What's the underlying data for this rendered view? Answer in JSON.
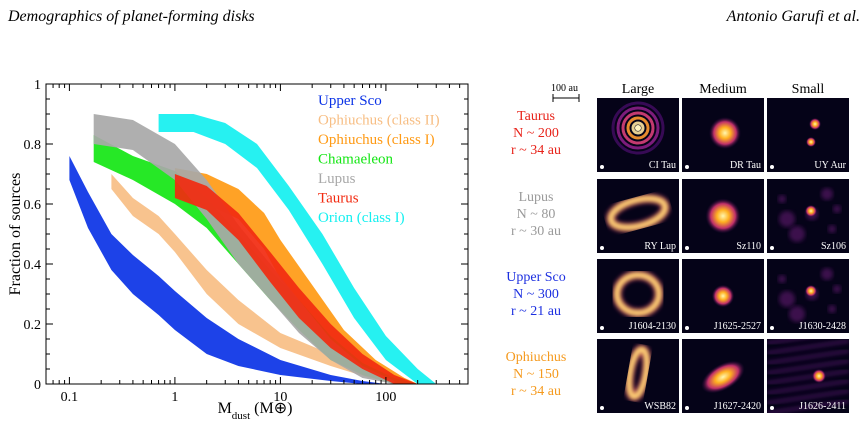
{
  "header": {
    "left": "Demographics of planet-forming disks",
    "right": "Antonio Garufi et al."
  },
  "chart_data": {
    "type": "area",
    "xlabel": "M",
    "xlabel_sub": "dust",
    "xlabel_unit": "(M⊕)",
    "ylabel": "Fraction of sources",
    "xscale": "log",
    "xlim": [
      0.06,
      600
    ],
    "ylim": [
      0,
      1
    ],
    "xticks": [
      {
        "v": 0.1,
        "label": "0.1"
      },
      {
        "v": 1,
        "label": "1"
      },
      {
        "v": 10,
        "label": "10"
      },
      {
        "v": 100,
        "label": "100"
      }
    ],
    "yticks": [
      {
        "v": 0,
        "label": "0"
      },
      {
        "v": 0.2,
        "label": "0.2"
      },
      {
        "v": 0.4,
        "label": "0.4"
      },
      {
        "v": 0.6,
        "label": "0.6"
      },
      {
        "v": 0.8,
        "label": "0.8"
      },
      {
        "v": 1,
        "label": "1"
      }
    ],
    "series": [
      {
        "name": "Upper Sco",
        "color": "#0a32e6",
        "band": [
          [
            0.1,
            0.76,
            0.68
          ],
          [
            0.15,
            0.64,
            0.52
          ],
          [
            0.25,
            0.5,
            0.38
          ],
          [
            0.4,
            0.43,
            0.3
          ],
          [
            0.7,
            0.36,
            0.23
          ],
          [
            1,
            0.31,
            0.18
          ],
          [
            2,
            0.22,
            0.1
          ],
          [
            4,
            0.15,
            0.06
          ],
          [
            10,
            0.08,
            0.03
          ],
          [
            30,
            0.03,
            0.01
          ],
          [
            60,
            0.01,
            0.0
          ],
          [
            100,
            0.0,
            0.0
          ]
        ]
      },
      {
        "name": "Ophiuchus (class II)",
        "color": "#f7be84",
        "band": [
          [
            0.25,
            0.7,
            0.65
          ],
          [
            0.4,
            0.62,
            0.56
          ],
          [
            0.7,
            0.56,
            0.5
          ],
          [
            1,
            0.5,
            0.44
          ],
          [
            2,
            0.38,
            0.3
          ],
          [
            4,
            0.28,
            0.2
          ],
          [
            10,
            0.17,
            0.12
          ],
          [
            30,
            0.1,
            0.06
          ],
          [
            70,
            0.05,
            0.02
          ],
          [
            150,
            0.02,
            0.0
          ],
          [
            200,
            0.0,
            0.0
          ]
        ]
      },
      {
        "name": "Ophiuchus (class I)",
        "color": "#ff9a14",
        "band": [
          [
            1,
            0.72,
            0.62
          ],
          [
            2,
            0.7,
            0.6
          ],
          [
            4,
            0.65,
            0.55
          ],
          [
            7,
            0.57,
            0.45
          ],
          [
            10,
            0.48,
            0.35
          ],
          [
            20,
            0.33,
            0.2
          ],
          [
            40,
            0.18,
            0.1
          ],
          [
            80,
            0.08,
            0.03
          ],
          [
            150,
            0.02,
            0.0
          ],
          [
            200,
            0.0,
            0.0
          ]
        ]
      },
      {
        "name": "Chamaeleon",
        "color": "#14e614",
        "band": [
          [
            0.17,
            0.83,
            0.74
          ],
          [
            0.4,
            0.76,
            0.68
          ],
          [
            1,
            0.71,
            0.6
          ],
          [
            2,
            0.62,
            0.52
          ],
          [
            4,
            0.5,
            0.4
          ],
          [
            8,
            0.38,
            0.28
          ],
          [
            15,
            0.28,
            0.18
          ],
          [
            30,
            0.16,
            0.08
          ],
          [
            60,
            0.07,
            0.03
          ],
          [
            120,
            0.02,
            0.0
          ],
          [
            200,
            0.0,
            0.0
          ]
        ]
      },
      {
        "name": "Lupus",
        "color": "#a8a8a8",
        "band": [
          [
            0.17,
            0.9,
            0.8
          ],
          [
            0.4,
            0.88,
            0.78
          ],
          [
            1,
            0.8,
            0.68
          ],
          [
            2,
            0.68,
            0.55
          ],
          [
            4,
            0.53,
            0.4
          ],
          [
            8,
            0.4,
            0.28
          ],
          [
            15,
            0.28,
            0.17
          ],
          [
            30,
            0.15,
            0.08
          ],
          [
            60,
            0.06,
            0.02
          ],
          [
            120,
            0.01,
            0.0
          ]
        ]
      },
      {
        "name": "Taurus",
        "color": "#f22a10",
        "band": [
          [
            1,
            0.7,
            0.62
          ],
          [
            2,
            0.66,
            0.58
          ],
          [
            4,
            0.57,
            0.48
          ],
          [
            8,
            0.44,
            0.34
          ],
          [
            15,
            0.32,
            0.22
          ],
          [
            30,
            0.2,
            0.12
          ],
          [
            60,
            0.1,
            0.05
          ],
          [
            120,
            0.03,
            0.0
          ],
          [
            200,
            0.0,
            0.0
          ]
        ]
      },
      {
        "name": "Orion (class I)",
        "color": "#14f0f0",
        "band": [
          [
            0.7,
            0.9,
            0.84
          ],
          [
            1.5,
            0.9,
            0.84
          ],
          [
            3,
            0.87,
            0.8
          ],
          [
            6,
            0.8,
            0.72
          ],
          [
            12,
            0.66,
            0.58
          ],
          [
            25,
            0.5,
            0.4
          ],
          [
            50,
            0.32,
            0.22
          ],
          [
            100,
            0.16,
            0.08
          ],
          [
            200,
            0.05,
            0.0
          ],
          [
            300,
            0.0,
            0.0
          ]
        ]
      }
    ]
  },
  "legend": [
    "Upper Sco",
    "Ophiuchus (class II)",
    "Ophiuchus (class I)",
    "Chamaeleon",
    "Lupus",
    "Taurus",
    "Orion (class I)"
  ],
  "gallery": {
    "scale_label": "100 au",
    "columns": [
      "Large",
      "Medium",
      "Small"
    ],
    "rows": [
      {
        "region": "Taurus",
        "n": "N ~ 200",
        "r": "r ~ 34 au",
        "color": "#e8231a",
        "tiles": [
          "CI Tau",
          "DR Tau",
          "UY Aur"
        ]
      },
      {
        "region": "Lupus",
        "n": "N ~ 80",
        "r": "r ~ 30 au",
        "color": "#9a9a9a",
        "tiles": [
          "RY Lup",
          "Sz110",
          "Sz106"
        ]
      },
      {
        "region": "Upper Sco",
        "n": "N ~ 300",
        "r": "r ~ 21 au",
        "color": "#1c2fe0",
        "tiles": [
          "J1604-2130",
          "J1625-2527",
          "J1630-2428"
        ]
      },
      {
        "region": "Ophiuchus",
        "n": "N ~ 150",
        "r": "r ~ 34 au",
        "color": "#f59a1e",
        "tiles": [
          "WSB82",
          "J1627-2420",
          "J1626-2411"
        ]
      }
    ]
  }
}
